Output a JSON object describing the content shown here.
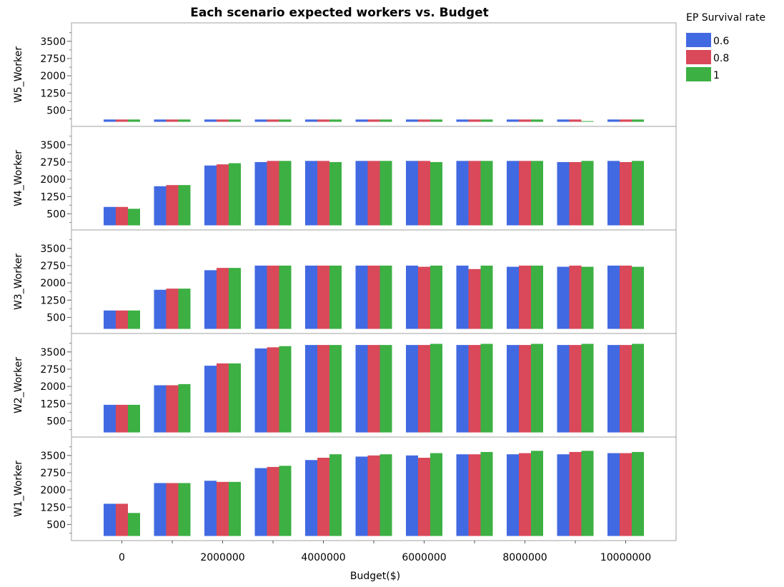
{
  "chart_data": {
    "type": "bar",
    "title": "Each scenario expected workers vs. Budget",
    "xlabel": "Budget($)",
    "x_tick_labels": [
      "0",
      "2000000",
      "4000000",
      "6000000",
      "8000000",
      "10000000"
    ],
    "categories": [
      0,
      1000000,
      2000000,
      3000000,
      4000000,
      5000000,
      6000000,
      7000000,
      8000000,
      9000000,
      10000000
    ],
    "legend": {
      "title": "EP Survival rate",
      "position": "top-right",
      "entries": [
        "0.6",
        "0.8",
        "1"
      ],
      "colors": [
        "#4169E1",
        "#D9495A",
        "#3CB043"
      ]
    },
    "ylim": [
      -200,
      4300
    ],
    "y_tick_labels": [
      "500",
      "1250",
      "2000",
      "2750",
      "3500"
    ],
    "grid": false,
    "panels": [
      {
        "ylabel": "W5_Worker",
        "series": [
          {
            "name": "0.6",
            "values": [
              100,
              100,
              100,
              100,
              100,
              100,
              100,
              100,
              100,
              100,
              100
            ]
          },
          {
            "name": "0.8",
            "values": [
              100,
              100,
              100,
              100,
              100,
              100,
              100,
              100,
              100,
              100,
              100
            ]
          },
          {
            "name": "1",
            "values": [
              100,
              100,
              100,
              100,
              100,
              100,
              100,
              100,
              100,
              30,
              100
            ]
          }
        ]
      },
      {
        "ylabel": "W4_Worker",
        "series": [
          {
            "name": "0.6",
            "values": [
              800,
              1700,
              2600,
              2750,
              2800,
              2800,
              2800,
              2800,
              2800,
              2750,
              2800
            ]
          },
          {
            "name": "0.8",
            "values": [
              800,
              1750,
              2650,
              2800,
              2800,
              2800,
              2800,
              2800,
              2800,
              2750,
              2750
            ]
          },
          {
            "name": "1",
            "values": [
              720,
              1750,
              2700,
              2800,
              2750,
              2800,
              2750,
              2800,
              2800,
              2800,
              2800
            ]
          }
        ]
      },
      {
        "ylabel": "W3_Worker",
        "series": [
          {
            "name": "0.6",
            "values": [
              800,
              1700,
              2550,
              2750,
              2750,
              2750,
              2750,
              2750,
              2700,
              2700,
              2750
            ]
          },
          {
            "name": "0.8",
            "values": [
              800,
              1750,
              2650,
              2750,
              2750,
              2750,
              2700,
              2600,
              2750,
              2750,
              2750
            ]
          },
          {
            "name": "1",
            "values": [
              800,
              1750,
              2650,
              2750,
              2750,
              2750,
              2750,
              2750,
              2750,
              2700,
              2700
            ]
          }
        ]
      },
      {
        "ylabel": "W2_Worker",
        "series": [
          {
            "name": "0.6",
            "values": [
              1200,
              2050,
              2900,
              3650,
              3800,
              3800,
              3800,
              3800,
              3800,
              3800,
              3800
            ]
          },
          {
            "name": "0.8",
            "values": [
              1200,
              2050,
              3000,
              3700,
              3800,
              3800,
              3800,
              3800,
              3800,
              3800,
              3800
            ]
          },
          {
            "name": "1",
            "values": [
              1200,
              2100,
              3000,
              3750,
              3800,
              3800,
              3850,
              3850,
              3850,
              3850,
              3850
            ]
          }
        ]
      },
      {
        "ylabel": "W1_Worker",
        "series": [
          {
            "name": "0.6",
            "values": [
              1400,
              2300,
              2400,
              2950,
              3300,
              3450,
              3500,
              3550,
              3550,
              3550,
              3600
            ]
          },
          {
            "name": "0.8",
            "values": [
              1400,
              2300,
              2350,
              3000,
              3400,
              3500,
              3400,
              3550,
              3600,
              3650,
              3600
            ]
          },
          {
            "name": "1",
            "values": [
              1000,
              2300,
              2350,
              3050,
              3550,
              3550,
              3600,
              3650,
              3700,
              3700,
              3650
            ]
          }
        ]
      }
    ]
  }
}
